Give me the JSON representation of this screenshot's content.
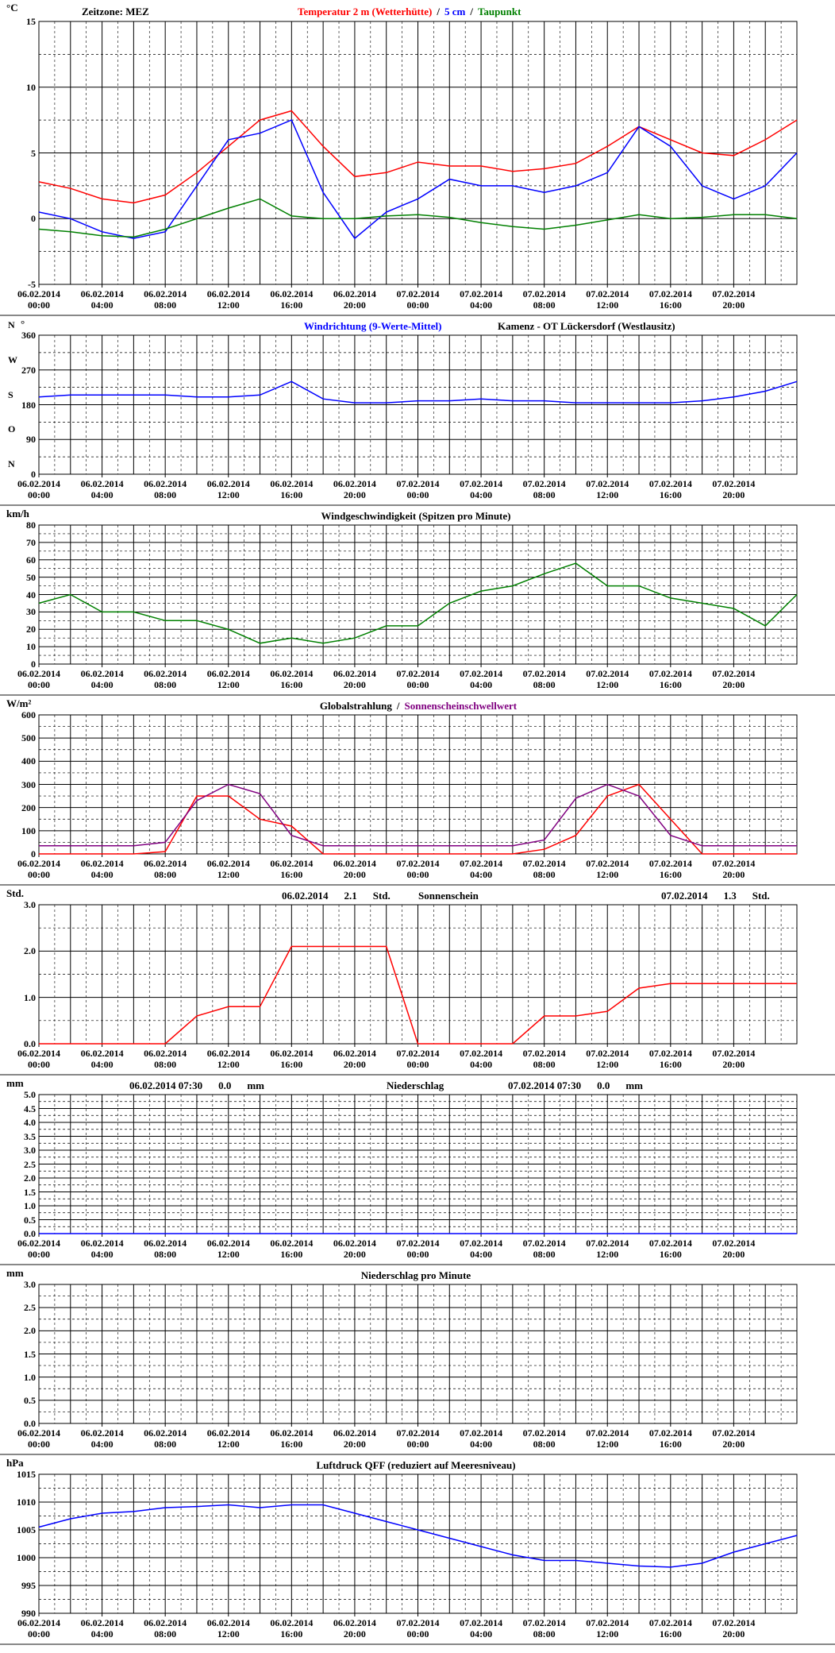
{
  "chart_data": [
    {
      "type": "line",
      "timezone": "Zeitzone: MEZ",
      "unit": "°C",
      "legend_separator": "/",
      "x": [
        0,
        2,
        4,
        6,
        8,
        10,
        12,
        14,
        16,
        18,
        20,
        22,
        24,
        26,
        28,
        30,
        32,
        34,
        36,
        38,
        40,
        42,
        44,
        46,
        48
      ],
      "xlim": [
        0,
        48
      ],
      "xticks": [
        {
          "value": 0,
          "label": "06.02.2014 00:00"
        },
        {
          "value": 4,
          "label": "06.02.2014 04:00"
        },
        {
          "value": 8,
          "label": "06.02.2014 08:00"
        },
        {
          "value": 12,
          "label": "06.02.2014 12:00"
        },
        {
          "value": 16,
          "label": "06.02.2014 16:00"
        },
        {
          "value": 20,
          "label": "06.02.2014 20:00"
        },
        {
          "value": 24,
          "label": "07.02.2014 00:00"
        },
        {
          "value": 28,
          "label": "07.02.2014 04:00"
        },
        {
          "value": 32,
          "label": "07.02.2014 08:00"
        },
        {
          "value": 36,
          "label": "07.02.2014 12:00"
        },
        {
          "value": 40,
          "label": "07.02.2014 16:00"
        },
        {
          "value": 44,
          "label": "07.02.2014 20:00"
        }
      ],
      "ylim": [
        -5,
        15
      ],
      "yticks": [
        -5,
        0,
        5,
        10,
        15
      ],
      "series": [
        {
          "name": "Temperatur 2 m (Wetterhütte)",
          "color": "#ff0000",
          "values": [
            2.8,
            2.3,
            1.5,
            1.2,
            1.8,
            3.5,
            5.5,
            7.5,
            8.2,
            5.5,
            3.2,
            3.5,
            4.3,
            4.0,
            4.0,
            3.6,
            3.8,
            4.2,
            5.5,
            7.0,
            6.0,
            5.0,
            4.8,
            6.0,
            7.5
          ]
        },
        {
          "name": "5 cm",
          "color": "#0000ff",
          "values": [
            0.5,
            0.0,
            -1.0,
            -1.5,
            -1.0,
            2.5,
            6.0,
            6.5,
            7.5,
            2.0,
            -1.5,
            0.5,
            1.5,
            3.0,
            2.5,
            2.5,
            2.0,
            2.5,
            3.5,
            7.0,
            5.5,
            2.5,
            1.5,
            2.5,
            5.0
          ]
        },
        {
          "name": "Taupunkt",
          "color": "#008000",
          "values": [
            -0.8,
            -1.0,
            -1.3,
            -1.4,
            -0.8,
            0.0,
            0.8,
            1.5,
            0.2,
            0.0,
            0.0,
            0.2,
            0.3,
            0.1,
            -0.3,
            -0.6,
            -0.8,
            -0.5,
            -0.1,
            0.3,
            0.0,
            0.1,
            0.3,
            0.3,
            0.0
          ]
        }
      ]
    },
    {
      "type": "line",
      "title": "Windrichtung (9-Werte-Mittel)",
      "station": "Kamenz - OT Lückersdorf (Westlausitz)",
      "unit": "°",
      "directions": [
        "N",
        "O",
        "S",
        "W",
        "N"
      ],
      "x": [
        0,
        2,
        4,
        6,
        8,
        10,
        12,
        14,
        16,
        18,
        20,
        22,
        24,
        26,
        28,
        30,
        32,
        34,
        36,
        38,
        40,
        42,
        44,
        46,
        48
      ],
      "xlim": [
        0,
        48
      ],
      "xticks": [
        {
          "value": 0,
          "label": "06.02.2014 00:00"
        },
        {
          "value": 4,
          "label": "06.02.2014 04:00"
        },
        {
          "value": 8,
          "label": "06.02.2014 08:00"
        },
        {
          "value": 12,
          "label": "06.02.2014 12:00"
        },
        {
          "value": 16,
          "label": "06.02.2014 16:00"
        },
        {
          "value": 20,
          "label": "06.02.2014 20:00"
        },
        {
          "value": 24,
          "label": "07.02.2014 00:00"
        },
        {
          "value": 28,
          "label": "07.02.2014 04:00"
        },
        {
          "value": 32,
          "label": "07.02.2014 08:00"
        },
        {
          "value": 36,
          "label": "07.02.2014 12:00"
        },
        {
          "value": 40,
          "label": "07.02.2014 16:00"
        },
        {
          "value": 44,
          "label": "07.02.2014 20:00"
        }
      ],
      "ylim": [
        0,
        360
      ],
      "yticks": [
        0,
        90,
        180,
        270,
        360
      ],
      "series": [
        {
          "color": "#0000ff",
          "values": [
            200,
            205,
            205,
            205,
            205,
            200,
            200,
            205,
            240,
            195,
            185,
            185,
            190,
            190,
            195,
            190,
            190,
            185,
            185,
            185,
            185,
            190,
            200,
            215,
            240
          ]
        }
      ]
    },
    {
      "type": "line",
      "title": "Windgeschwindigkeit (Spitzen pro Minute)",
      "unit": "km/h",
      "x": [
        0,
        2,
        4,
        6,
        8,
        10,
        12,
        14,
        16,
        18,
        20,
        22,
        24,
        26,
        28,
        30,
        32,
        34,
        36,
        38,
        40,
        42,
        44,
        46,
        48
      ],
      "xlim": [
        0,
        48
      ],
      "xticks": [
        {
          "value": 0,
          "label": "06.02.2014 00:00"
        },
        {
          "value": 4,
          "label": "06.02.2014 04:00"
        },
        {
          "value": 8,
          "label": "06.02.2014 08:00"
        },
        {
          "value": 12,
          "label": "06.02.2014 12:00"
        },
        {
          "value": 16,
          "label": "06.02.2014 16:00"
        },
        {
          "value": 20,
          "label": "06.02.2014 20:00"
        },
        {
          "value": 24,
          "label": "07.02.2014 00:00"
        },
        {
          "value": 28,
          "label": "07.02.2014 04:00"
        },
        {
          "value": 32,
          "label": "07.02.2014 08:00"
        },
        {
          "value": 36,
          "label": "07.02.2014 12:00"
        },
        {
          "value": 40,
          "label": "07.02.2014 16:00"
        },
        {
          "value": 44,
          "label": "07.02.2014 20:00"
        }
      ],
      "ylim": [
        0,
        80
      ],
      "yticks": [
        0,
        10,
        20,
        30,
        40,
        50,
        60,
        70,
        80
      ],
      "series": [
        {
          "color": "#008000",
          "values": [
            35,
            40,
            30,
            30,
            25,
            25,
            20,
            12,
            15,
            12,
            15,
            22,
            22,
            35,
            42,
            45,
            52,
            58,
            45,
            45,
            38,
            35,
            32,
            22,
            40
          ]
        }
      ]
    },
    {
      "type": "line",
      "unit": "W/m²",
      "legend_separator": "/",
      "x": [
        0,
        2,
        4,
        6,
        8,
        10,
        12,
        14,
        16,
        18,
        20,
        22,
        24,
        26,
        28,
        30,
        32,
        34,
        36,
        38,
        40,
        42,
        44,
        46,
        48
      ],
      "xlim": [
        0,
        48
      ],
      "xticks": [
        {
          "value": 0,
          "label": "06.02.2014 00:00"
        },
        {
          "value": 4,
          "label": "06.02.2014 04:00"
        },
        {
          "value": 8,
          "label": "06.02.2014 08:00"
        },
        {
          "value": 12,
          "label": "06.02.2014 12:00"
        },
        {
          "value": 16,
          "label": "06.02.2014 16:00"
        },
        {
          "value": 20,
          "label": "06.02.2014 20:00"
        },
        {
          "value": 24,
          "label": "07.02.2014 00:00"
        },
        {
          "value": 28,
          "label": "07.02.2014 04:00"
        },
        {
          "value": 32,
          "label": "07.02.2014 08:00"
        },
        {
          "value": 36,
          "label": "07.02.2014 12:00"
        },
        {
          "value": 40,
          "label": "07.02.2014 16:00"
        },
        {
          "value": 44,
          "label": "07.02.2014 20:00"
        }
      ],
      "ylim": [
        0,
        600
      ],
      "yticks": [
        0,
        100,
        200,
        300,
        400,
        500,
        600
      ],
      "series": [
        {
          "name": "Globalstrahlung",
          "color": "#ff0000",
          "values": [
            0,
            0,
            0,
            0,
            10,
            250,
            250,
            150,
            120,
            0,
            0,
            0,
            0,
            0,
            0,
            0,
            20,
            80,
            250,
            300,
            150,
            0,
            0,
            0,
            0
          ]
        },
        {
          "name": "Sonnenscheinschwellwert",
          "color": "#800080",
          "values": [
            35,
            35,
            35,
            35,
            50,
            230,
            300,
            260,
            80,
            35,
            35,
            35,
            35,
            35,
            35,
            35,
            60,
            240,
            300,
            250,
            80,
            35,
            35,
            35,
            35
          ]
        }
      ]
    },
    {
      "type": "line",
      "title": "Sonnenschein",
      "unit": "Std.",
      "summaries": [
        {
          "date": "06.02.2014",
          "value": 2.1,
          "unit": "Std."
        },
        {
          "date": "07.02.2014",
          "value": 1.3,
          "unit": "Std."
        }
      ],
      "x": [
        0,
        2,
        4,
        6,
        8,
        10,
        12,
        14,
        16,
        18,
        20,
        22,
        24,
        26,
        28,
        30,
        32,
        34,
        36,
        38,
        40,
        42,
        44,
        46,
        48
      ],
      "xlim": [
        0,
        48
      ],
      "xticks": [
        {
          "value": 0,
          "label": "06.02.2014 00:00"
        },
        {
          "value": 4,
          "label": "06.02.2014 04:00"
        },
        {
          "value": 8,
          "label": "06.02.2014 08:00"
        },
        {
          "value": 12,
          "label": "06.02.2014 12:00"
        },
        {
          "value": 16,
          "label": "06.02.2014 16:00"
        },
        {
          "value": 20,
          "label": "06.02.2014 20:00"
        },
        {
          "value": 24,
          "label": "07.02.2014 00:00"
        },
        {
          "value": 28,
          "label": "07.02.2014 04:00"
        },
        {
          "value": 32,
          "label": "07.02.2014 08:00"
        },
        {
          "value": 36,
          "label": "07.02.2014 12:00"
        },
        {
          "value": 40,
          "label": "07.02.2014 16:00"
        },
        {
          "value": 44,
          "label": "07.02.2014 20:00"
        }
      ],
      "ylim": [
        0,
        3
      ],
      "yticks": [
        {
          "value": 0,
          "label": "0.0"
        },
        {
          "value": 1,
          "label": "1.0"
        },
        {
          "value": 2,
          "label": "2.0"
        },
        {
          "value": 3,
          "label": "3.0"
        }
      ],
      "series": [
        {
          "color": "#ff0000",
          "values": [
            0,
            0,
            0,
            0,
            0,
            0.6,
            0.8,
            0.8,
            2.1,
            2.1,
            2.1,
            2.1,
            0,
            0,
            0,
            0,
            0.6,
            0.6,
            0.7,
            1.2,
            1.3,
            1.3,
            1.3,
            1.3,
            1.3
          ]
        }
      ]
    },
    {
      "type": "line",
      "title": "Niederschlag",
      "unit": "mm",
      "summaries": [
        {
          "date": "06.02.2014 07:30",
          "value": 0,
          "value_label": "0.0",
          "unit": "mm"
        },
        {
          "date": "07.02.2014 07:30",
          "value": 0,
          "value_label": "0.0",
          "unit": "mm"
        }
      ],
      "x": [
        0,
        2,
        4,
        6,
        8,
        10,
        12,
        14,
        16,
        18,
        20,
        22,
        24,
        26,
        28,
        30,
        32,
        34,
        36,
        38,
        40,
        42,
        44,
        46,
        48
      ],
      "xlim": [
        0,
        48
      ],
      "xticks": [
        {
          "value": 0,
          "label": "06.02.2014 00:00"
        },
        {
          "value": 4,
          "label": "06.02.2014 04:00"
        },
        {
          "value": 8,
          "label": "06.02.2014 08:00"
        },
        {
          "value": 12,
          "label": "06.02.2014 12:00"
        },
        {
          "value": 16,
          "label": "06.02.2014 16:00"
        },
        {
          "value": 20,
          "label": "06.02.2014 20:00"
        },
        {
          "value": 24,
          "label": "07.02.2014 00:00"
        },
        {
          "value": 28,
          "label": "07.02.2014 04:00"
        },
        {
          "value": 32,
          "label": "07.02.2014 08:00"
        },
        {
          "value": 36,
          "label": "07.02.2014 12:00"
        },
        {
          "value": 40,
          "label": "07.02.2014 16:00"
        },
        {
          "value": 44,
          "label": "07.02.2014 20:00"
        }
      ],
      "ylim": [
        0,
        5
      ],
      "yticks": [
        {
          "value": 0,
          "label": "0.0"
        },
        0.5,
        {
          "value": 1,
          "label": "1.0"
        },
        1.5,
        {
          "value": 2,
          "label": "2.0"
        },
        2.5,
        {
          "value": 3,
          "label": "3.0"
        },
        3.5,
        {
          "value": 4,
          "label": "4.0"
        },
        4.5,
        {
          "value": 5,
          "label": "5.0"
        }
      ],
      "series": [
        {
          "color": "#0000ff",
          "values": [
            0,
            0,
            0,
            0,
            0,
            0,
            0,
            0,
            0,
            0,
            0,
            0,
            0,
            0,
            0,
            0,
            0,
            0,
            0,
            0,
            0,
            0,
            0,
            0,
            0
          ]
        }
      ]
    },
    {
      "type": "line",
      "title": "Niederschlag pro Minute",
      "unit": "mm",
      "x": [
        0,
        2,
        4,
        6,
        8,
        10,
        12,
        14,
        16,
        18,
        20,
        22,
        24,
        26,
        28,
        30,
        32,
        34,
        36,
        38,
        40,
        42,
        44,
        46,
        48
      ],
      "xlim": [
        0,
        48
      ],
      "xticks": [
        {
          "value": 0,
          "label": "06.02.2014 00:00"
        },
        {
          "value": 4,
          "label": "06.02.2014 04:00"
        },
        {
          "value": 8,
          "label": "06.02.2014 08:00"
        },
        {
          "value": 12,
          "label": "06.02.2014 12:00"
        },
        {
          "value": 16,
          "label": "06.02.2014 16:00"
        },
        {
          "value": 20,
          "label": "06.02.2014 20:00"
        },
        {
          "value": 24,
          "label": "07.02.2014 00:00"
        },
        {
          "value": 28,
          "label": "07.02.2014 04:00"
        },
        {
          "value": 32,
          "label": "07.02.2014 08:00"
        },
        {
          "value": 36,
          "label": "07.02.2014 12:00"
        },
        {
          "value": 40,
          "label": "07.02.2014 16:00"
        },
        {
          "value": 44,
          "label": "07.02.2014 20:00"
        }
      ],
      "ylim": [
        0,
        3
      ],
      "yticks": [
        {
          "value": 0,
          "label": "0.0"
        },
        0.5,
        {
          "value": 1,
          "label": "1.0"
        },
        1.5,
        {
          "value": 2,
          "label": "2.0"
        },
        2.5,
        {
          "value": 3,
          "label": "3.0"
        }
      ],
      "series": []
    },
    {
      "type": "line",
      "title": "Luftdruck QFF (reduziert auf Meeresniveau)",
      "unit": "hPa",
      "x": [
        0,
        2,
        4,
        6,
        8,
        10,
        12,
        14,
        16,
        18,
        20,
        22,
        24,
        26,
        28,
        30,
        32,
        34,
        36,
        38,
        40,
        42,
        44,
        46,
        48
      ],
      "xlim": [
        0,
        48
      ],
      "xticks": [
        {
          "value": 0,
          "label": "06.02.2014 00:00"
        },
        {
          "value": 4,
          "label": "06.02.2014 04:00"
        },
        {
          "value": 8,
          "label": "06.02.2014 08:00"
        },
        {
          "value": 12,
          "label": "06.02.2014 12:00"
        },
        {
          "value": 16,
          "label": "06.02.2014 16:00"
        },
        {
          "value": 20,
          "label": "06.02.2014 20:00"
        },
        {
          "value": 24,
          "label": "07.02.2014 00:00"
        },
        {
          "value": 28,
          "label": "07.02.2014 04:00"
        },
        {
          "value": 32,
          "label": "07.02.2014 08:00"
        },
        {
          "value": 36,
          "label": "07.02.2014 12:00"
        },
        {
          "value": 40,
          "label": "07.02.2014 16:00"
        },
        {
          "value": 44,
          "label": "07.02.2014 20:00"
        }
      ],
      "ylim": [
        990,
        1015
      ],
      "yticks": [
        990,
        995,
        1000,
        1005,
        1010,
        1015
      ],
      "series": [
        {
          "color": "#0000ff",
          "values": [
            1005.5,
            1007,
            1008,
            1008.3,
            1009,
            1009.2,
            1009.5,
            1009,
            1009.5,
            1009.5,
            1008,
            1006.5,
            1005,
            1003.5,
            1002,
            1000.5,
            999.5,
            999.5,
            999,
            998.5,
            998.3,
            999,
            1001,
            1002.5,
            1004
          ]
        }
      ]
    }
  ]
}
